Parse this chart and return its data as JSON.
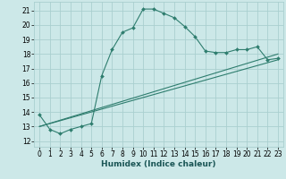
{
  "xlabel": "Humidex (Indice chaleur)",
  "bg_color": "#cce8e8",
  "line_color": "#2e7d6e",
  "grid_color": "#aacfcf",
  "xlim": [
    -0.5,
    23.5
  ],
  "ylim": [
    11.6,
    21.6
  ],
  "xticks": [
    0,
    1,
    2,
    3,
    4,
    5,
    6,
    7,
    8,
    9,
    10,
    11,
    12,
    13,
    14,
    15,
    16,
    17,
    18,
    19,
    20,
    21,
    22,
    23
  ],
  "yticks": [
    12,
    13,
    14,
    15,
    16,
    17,
    18,
    19,
    20,
    21
  ],
  "curve1_x": [
    0,
    1,
    2,
    3,
    4,
    5,
    6,
    7,
    8,
    9,
    10,
    11,
    12,
    13,
    14,
    15,
    16,
    17,
    18,
    19,
    20,
    21,
    22,
    23
  ],
  "curve1_y": [
    13.8,
    12.8,
    12.5,
    12.8,
    13.0,
    13.2,
    16.5,
    18.3,
    19.5,
    19.8,
    21.1,
    21.1,
    20.8,
    20.5,
    19.9,
    19.2,
    18.2,
    18.1,
    18.1,
    18.3,
    18.3,
    18.5,
    17.6,
    17.7
  ],
  "line2_x": [
    0,
    23
  ],
  "line2_y": [
    13.0,
    17.6
  ],
  "line3_x": [
    0,
    23
  ],
  "line3_y": [
    13.0,
    18.0
  ],
  "tick_labelsize": 5.5,
  "xlabel_fontsize": 6.5,
  "title_fontsize": 6.5
}
